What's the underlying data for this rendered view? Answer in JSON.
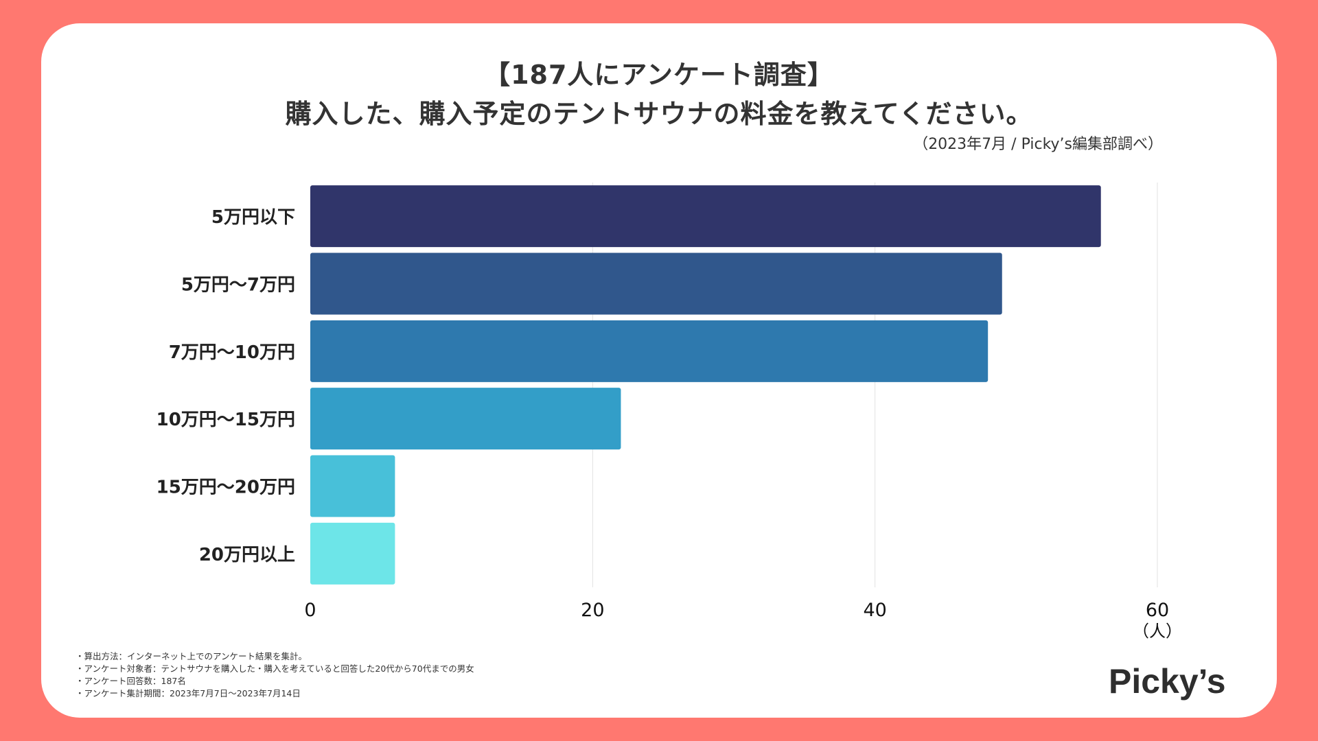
{
  "title": {
    "line1": "【187人にアンケート調査】",
    "line2": "購入した、購入予定のテントサウナの料金を教えてください。"
  },
  "source": "（2023年7月 / Picky’s編集部調べ）",
  "chart_data": {
    "type": "bar",
    "orientation": "horizontal",
    "categories": [
      "5万円以下",
      "5万円～7万円",
      "7万円～10万円",
      "10万円～15万円",
      "15万円～20万円",
      "20万円以上"
    ],
    "values": [
      56,
      49,
      48,
      22,
      6,
      6
    ],
    "colors": [
      "#30356A",
      "#30578C",
      "#2E79AE",
      "#339EC8",
      "#48C0D9",
      "#6DE5E8"
    ],
    "xlim": [
      0,
      60
    ],
    "xticks": [
      0,
      20,
      40,
      60
    ],
    "xunit": "（人）",
    "grid": true
  },
  "notes": [
    "・算出方法：インターネット上でのアンケート結果を集計。",
    "・アンケート対象者：テントサウナを購入した・購入を考えていると回答した20代から70代までの男女",
    "・アンケート回答数：187名",
    "・アンケート集計期間：2023年7月7日～2023年7月14日"
  ],
  "logo": "Picky’s"
}
